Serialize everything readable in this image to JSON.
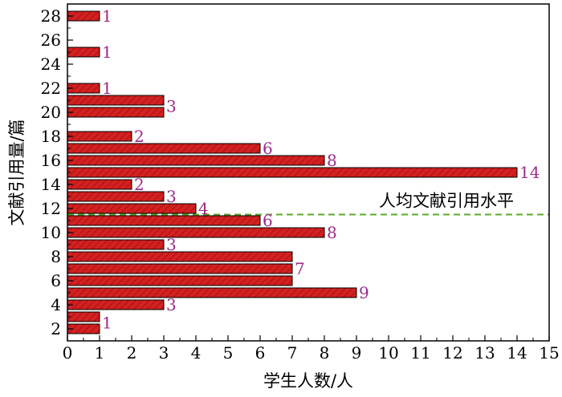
{
  "chart_data": {
    "type": "bar",
    "orientation": "horizontal",
    "xlabel": "学生人数/人",
    "ylabel": "文献引用量/篇",
    "xlim": [
      0,
      15
    ],
    "ylim": [
      1,
      29
    ],
    "xticks": [
      0,
      1,
      2,
      3,
      4,
      5,
      6,
      7,
      8,
      9,
      10,
      11,
      12,
      13,
      14,
      15
    ],
    "yticks": [
      2,
      4,
      6,
      8,
      10,
      12,
      14,
      16,
      18,
      20,
      22,
      24,
      26,
      28
    ],
    "categories": [
      2,
      3,
      4,
      5,
      6,
      7,
      8,
      9,
      10,
      11,
      12,
      13,
      14,
      15,
      16,
      17,
      18,
      20,
      21,
      22,
      25,
      28
    ],
    "values": [
      1,
      1,
      3,
      9,
      7,
      7,
      7,
      3,
      8,
      6,
      4,
      3,
      2,
      14,
      8,
      6,
      2,
      3,
      3,
      1,
      1,
      1
    ],
    "data_labels": [
      {
        "y": 2.5,
        "text": "1"
      },
      {
        "y": 4,
        "text": "3"
      },
      {
        "y": 5,
        "text": "9"
      },
      {
        "y": 7,
        "text": "7"
      },
      {
        "y": 9,
        "text": "3"
      },
      {
        "y": 10,
        "text": "8"
      },
      {
        "y": 11,
        "text": "6"
      },
      {
        "y": 12,
        "text": "4"
      },
      {
        "y": 13,
        "text": "3"
      },
      {
        "y": 14,
        "text": "2"
      },
      {
        "y": 15,
        "text": "14"
      },
      {
        "y": 16,
        "text": "8"
      },
      {
        "y": 17,
        "text": "6"
      },
      {
        "y": 18,
        "text": "2"
      },
      {
        "y": 20.5,
        "text": "3"
      },
      {
        "y": 22,
        "text": "1"
      },
      {
        "y": 25,
        "text": "1"
      },
      {
        "y": 28,
        "text": "1"
      }
    ],
    "reference_line": {
      "y": 11.5,
      "label": "人均文献引用水平",
      "color": "#5aaa28"
    },
    "bar_color": "#d42020",
    "label_color": "#9b2a8a",
    "grid": false,
    "legend": "none"
  }
}
